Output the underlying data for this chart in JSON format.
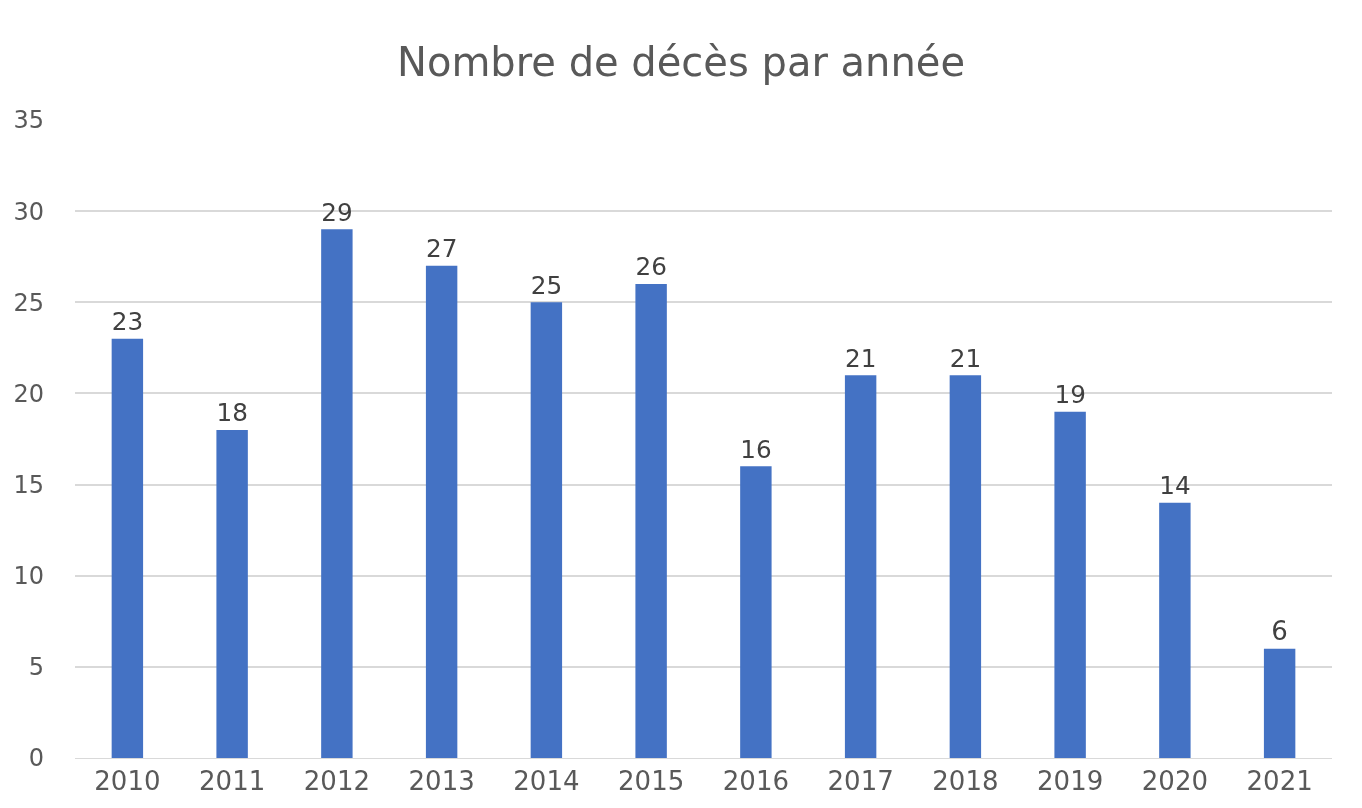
{
  "chart_data": {
    "type": "bar",
    "title": "Nombre de décès par année",
    "categories": [
      "2010",
      "2011",
      "2012",
      "2013",
      "2014",
      "2015",
      "2016",
      "2017",
      "2018",
      "2019",
      "2020",
      "2021"
    ],
    "values": [
      23,
      18,
      29,
      27,
      25,
      26,
      16,
      21,
      21,
      19,
      14,
      6
    ],
    "color": "#4472c4",
    "ylim": [
      0,
      35
    ],
    "yticks": [
      0,
      5,
      10,
      15,
      20,
      25,
      30,
      35
    ],
    "grid": "y",
    "data_labels": true,
    "legend": false
  }
}
